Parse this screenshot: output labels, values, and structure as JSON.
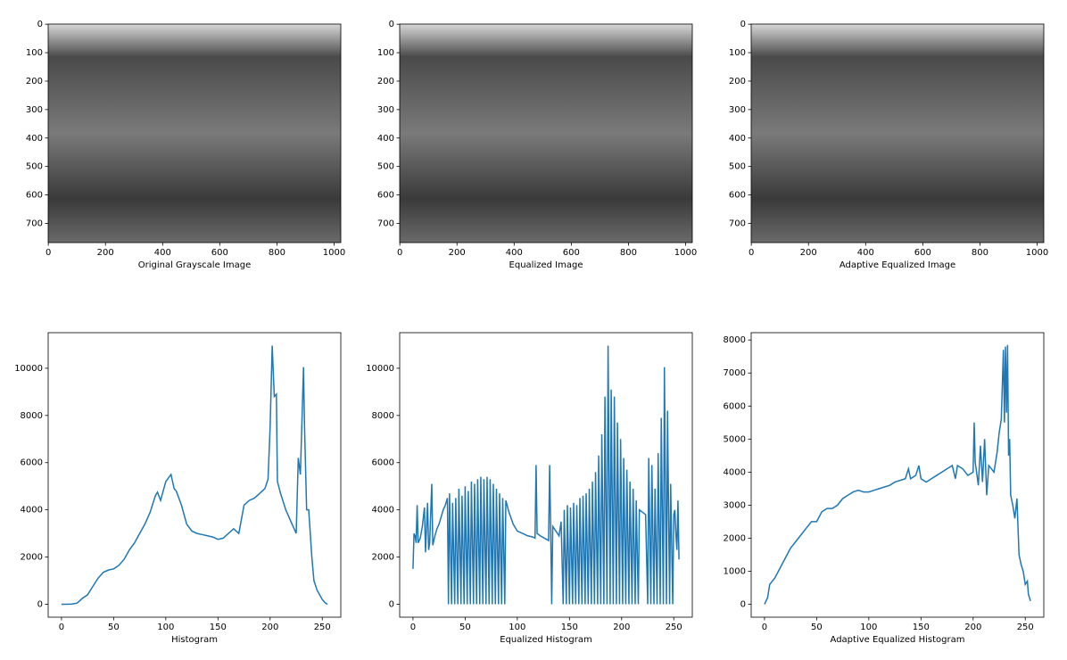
{
  "chart_data": [
    {
      "type": "image",
      "xlabel": "Original Grayscale Image",
      "xlim": [
        -0.5,
        1023.5
      ],
      "ylim": [
        767.5,
        -0.5
      ],
      "xticks": [
        0,
        200,
        400,
        600,
        800,
        1000
      ],
      "yticks": [
        0,
        100,
        200,
        300,
        400,
        500,
        600,
        700
      ]
    },
    {
      "type": "image",
      "xlabel": "Equalized Image",
      "xlim": [
        -0.5,
        1023.5
      ],
      "ylim": [
        767.5,
        -0.5
      ],
      "xticks": [
        0,
        200,
        400,
        600,
        800,
        1000
      ],
      "yticks": [
        0,
        100,
        200,
        300,
        400,
        500,
        600,
        700
      ]
    },
    {
      "type": "image",
      "xlabel": "Adaptive Equalized Image",
      "xlim": [
        -0.5,
        1023.5
      ],
      "ylim": [
        767.5,
        -0.5
      ],
      "xticks": [
        0,
        200,
        400,
        600,
        800,
        1000
      ],
      "yticks": [
        0,
        100,
        200,
        300,
        400,
        500,
        600,
        700
      ]
    },
    {
      "type": "line",
      "xlabel": "Histogram",
      "color": "#1f77b4",
      "xlim": [
        -12.75,
        267.75
      ],
      "ylim": [
        -548,
        11508
      ],
      "xticks": [
        0,
        50,
        100,
        150,
        200,
        250
      ],
      "yticks": [
        0,
        2000,
        4000,
        6000,
        8000,
        10000
      ],
      "x": [
        0,
        5,
        10,
        15,
        20,
        25,
        30,
        35,
        40,
        45,
        50,
        55,
        60,
        65,
        70,
        75,
        80,
        85,
        90,
        92,
        95,
        100,
        105,
        108,
        110,
        115,
        120,
        125,
        130,
        135,
        140,
        145,
        150,
        155,
        160,
        165,
        170,
        175,
        180,
        185,
        190,
        195,
        198,
        200,
        202,
        204,
        206,
        207,
        210,
        215,
        220,
        225,
        227,
        229,
        231,
        232,
        233,
        235,
        237,
        240,
        242,
        245,
        250,
        253,
        255
      ],
      "values": [
        0,
        0,
        10,
        50,
        250,
        400,
        750,
        1100,
        1350,
        1450,
        1500,
        1650,
        1900,
        2300,
        2600,
        3000,
        3400,
        3900,
        4600,
        4750,
        4400,
        5200,
        5500,
        4900,
        4800,
        4200,
        3400,
        3100,
        3000,
        2950,
        2900,
        2850,
        2750,
        2800,
        3000,
        3200,
        3000,
        4200,
        4400,
        4500,
        4700,
        4900,
        5300,
        7500,
        10960,
        8800,
        8900,
        5200,
        4700,
        4000,
        3500,
        3000,
        6200,
        5500,
        8500,
        10050,
        7500,
        4000,
        4000,
        2000,
        1000,
        600,
        200,
        50,
        0
      ]
    },
    {
      "type": "line",
      "xlabel": "Equalized Histogram",
      "color": "#1f77b4",
      "xlim": [
        -12.75,
        267.75
      ],
      "ylim": [
        -548,
        11508
      ],
      "xticks": [
        0,
        50,
        100,
        150,
        200,
        250
      ],
      "yticks": [
        0,
        2000,
        4000,
        6000,
        8000,
        10000
      ],
      "x": [
        0,
        1,
        2,
        3,
        4,
        5,
        7,
        9,
        11,
        12,
        14,
        15,
        16,
        18,
        19,
        21,
        23,
        25,
        27,
        29,
        31,
        33,
        34,
        35,
        37,
        38,
        40,
        41,
        43,
        44,
        46,
        47,
        49,
        50,
        52,
        53,
        55,
        56,
        58,
        59,
        61,
        62,
        64,
        65,
        67,
        68,
        70,
        71,
        73,
        74,
        76,
        77,
        79,
        80,
        82,
        83,
        85,
        86,
        88,
        89,
        92,
        96,
        100,
        105,
        110,
        115,
        117,
        118,
        119,
        122,
        126,
        130,
        131,
        132,
        133,
        134,
        137,
        140,
        142,
        144,
        145,
        147,
        148,
        150,
        151,
        153,
        154,
        156,
        157,
        159,
        160,
        162,
        163,
        165,
        166,
        168,
        169,
        171,
        172,
        174,
        175,
        177,
        178,
        180,
        181,
        183,
        184,
        186,
        187,
        189,
        190,
        192,
        193,
        195,
        196,
        198,
        199,
        201,
        202,
        204,
        205,
        207,
        208,
        210,
        211,
        213,
        214,
        216,
        217,
        220,
        223,
        225,
        226,
        228,
        229,
        231,
        232,
        234,
        235,
        237,
        238,
        240,
        241,
        243,
        244,
        246,
        247,
        249,
        250,
        251,
        252,
        253,
        254,
        255
      ],
      "values": [
        1500,
        3000,
        2900,
        2600,
        4200,
        2600,
        2800,
        3300,
        4100,
        2200,
        4300,
        2300,
        2600,
        5100,
        2500,
        2900,
        3200,
        3400,
        3700,
        4000,
        4200,
        4500,
        0,
        4700,
        0,
        4300,
        0,
        4500,
        0,
        4900,
        0,
        4600,
        0,
        5000,
        0,
        4800,
        0,
        5200,
        0,
        5100,
        0,
        5300,
        0,
        5400,
        0,
        5300,
        0,
        5400,
        0,
        5300,
        0,
        5100,
        0,
        4900,
        0,
        4700,
        0,
        4500,
        0,
        4400,
        3900,
        3400,
        3100,
        3000,
        2900,
        2850,
        2800,
        5900,
        3000,
        2900,
        2800,
        2700,
        5900,
        3200,
        0,
        3300,
        3100,
        2900,
        3500,
        0,
        4000,
        0,
        4200,
        0,
        4100,
        0,
        4300,
        0,
        4200,
        0,
        4500,
        0,
        4600,
        0,
        4700,
        0,
        4900,
        0,
        5200,
        0,
        5600,
        0,
        6300,
        0,
        7200,
        0,
        8800,
        0,
        10960,
        0,
        9100,
        0,
        8800,
        0,
        7700,
        0,
        7000,
        0,
        6200,
        0,
        5700,
        0,
        5200,
        0,
        4900,
        0,
        4400,
        0,
        4000,
        3900,
        3800,
        0,
        6200,
        0,
        5900,
        0,
        4900,
        0,
        6400,
        0,
        7900,
        0,
        10050,
        0,
        8200,
        0,
        5100,
        0,
        3800,
        4000,
        3000,
        2300,
        4400,
        1900
      ]
    },
    {
      "type": "line",
      "xlabel": "Adaptive Equalized Histogram",
      "color": "#1f77b4",
      "xlim": [
        -12.75,
        267.75
      ],
      "ylim": [
        -391,
        8221
      ],
      "xticks": [
        0,
        50,
        100,
        150,
        200,
        250
      ],
      "yticks": [
        0,
        1000,
        2000,
        3000,
        4000,
        5000,
        6000,
        7000,
        8000
      ],
      "x": [
        0,
        3,
        5,
        10,
        15,
        20,
        25,
        30,
        35,
        40,
        45,
        50,
        55,
        60,
        65,
        70,
        75,
        80,
        85,
        90,
        95,
        100,
        105,
        110,
        115,
        120,
        125,
        130,
        135,
        138,
        140,
        145,
        148,
        150,
        155,
        160,
        165,
        170,
        175,
        180,
        183,
        185,
        190,
        195,
        200,
        201,
        202,
        205,
        207,
        209,
        211,
        213,
        215,
        220,
        223,
        225,
        227,
        229,
        230,
        231,
        232,
        233,
        234,
        235,
        236,
        238,
        240,
        242,
        244,
        246,
        248,
        250,
        252,
        253,
        255
      ],
      "values": [
        0,
        200,
        600,
        800,
        1100,
        1400,
        1700,
        1900,
        2100,
        2300,
        2500,
        2500,
        2800,
        2900,
        2900,
        3000,
        3200,
        3300,
        3400,
        3450,
        3400,
        3400,
        3450,
        3500,
        3550,
        3600,
        3700,
        3750,
        3800,
        4100,
        3800,
        3900,
        4200,
        3800,
        3700,
        3800,
        3900,
        4000,
        4100,
        4200,
        3800,
        4200,
        4100,
        3900,
        4000,
        5500,
        4300,
        3600,
        4800,
        3700,
        5000,
        3300,
        4200,
        4000,
        4600,
        5200,
        5600,
        7700,
        5500,
        7800,
        5800,
        7850,
        4500,
        5000,
        3300,
        3000,
        2600,
        3200,
        1500,
        1200,
        1000,
        600,
        700,
        300,
        100
      ]
    }
  ]
}
